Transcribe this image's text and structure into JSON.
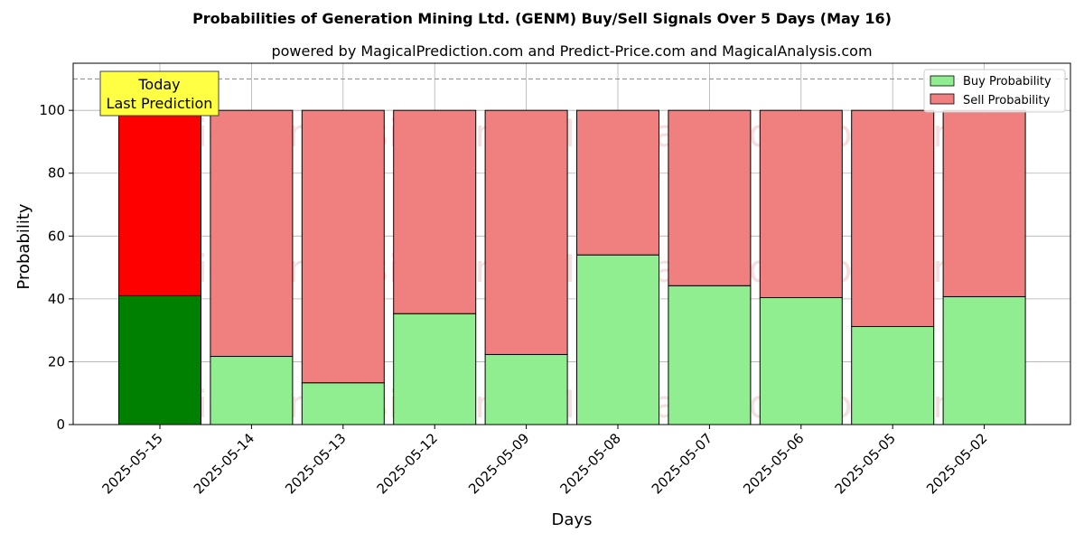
{
  "chart_data": {
    "type": "bar",
    "stacked": true,
    "title": "Probabilities of Generation Mining Ltd. (GENM) Buy/Sell Signals Over 5 Days (May 16)",
    "subtitle": "powered by MagicalPrediction.com and Predict-Price.com and MagicalAnalysis.com",
    "xlabel": "Days",
    "ylabel": "Probability",
    "ylim": [
      0,
      115
    ],
    "yticks": [
      0,
      20,
      40,
      60,
      80,
      100
    ],
    "grid": true,
    "legend_position": "top-right",
    "reference_line": 110,
    "categories": [
      "2025-05-15",
      "2025-05-14",
      "2025-05-13",
      "2025-05-12",
      "2025-05-09",
      "2025-05-08",
      "2025-05-07",
      "2025-05-06",
      "2025-05-05",
      "2025-05-02"
    ],
    "series": [
      {
        "name": "Buy Probability",
        "color": "#90ee90",
        "highlight_color": "#008000",
        "values": [
          41,
          21.7,
          13.3,
          35.3,
          22.3,
          54,
          44.2,
          40.4,
          31.2,
          40.7
        ]
      },
      {
        "name": "Sell Probability",
        "color": "#f08080",
        "highlight_color": "#ff0000",
        "values": [
          59,
          78.3,
          86.7,
          64.7,
          77.7,
          46,
          55.8,
          59.6,
          68.8,
          59.3
        ]
      }
    ],
    "annotation": {
      "lines": [
        "Today",
        "Last Prediction"
      ],
      "background": "#ffff44"
    },
    "watermarks": [
      "MagicalAnalysis.com",
      "MagicalPrediction.com"
    ]
  }
}
